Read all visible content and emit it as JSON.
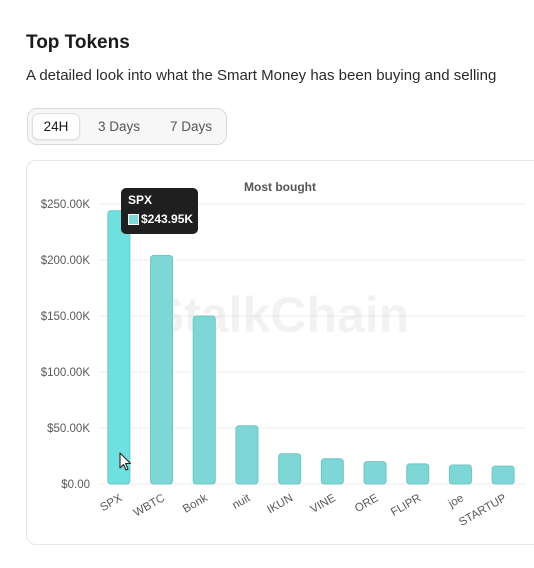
{
  "header": {
    "title": "Top Tokens",
    "subtitle": "A detailed look into what the Smart Money has been buying and selling"
  },
  "tabs": [
    {
      "label": "24H",
      "active": true
    },
    {
      "label": "3 Days",
      "active": false
    },
    {
      "label": "7 Days",
      "active": false
    }
  ],
  "watermark": "StalkChain",
  "tooltip": {
    "name": "SPX",
    "value": "$243.95K"
  },
  "colors": {
    "bar": "#7fd6d6",
    "bar_active": "#6fe0e0",
    "bar_stroke": "#6cc6c6"
  },
  "chart_data": {
    "type": "bar",
    "title": "Most bought",
    "categories": [
      "SPX",
      "WBTC",
      "Bonk",
      "nuit",
      "IKUN",
      "VINE",
      "ORE",
      "FLIPR",
      "joe",
      "STARTUP"
    ],
    "values": [
      243950,
      204000,
      150000,
      52000,
      27000,
      22500,
      20000,
      18000,
      17000,
      16000
    ],
    "ylim": [
      0,
      250000
    ],
    "yticks": [
      {
        "value": 0,
        "label": "$0.00"
      },
      {
        "value": 50000,
        "label": "$50.00K"
      },
      {
        "value": 100000,
        "label": "$100.00K"
      },
      {
        "value": 150000,
        "label": "$150.00K"
      },
      {
        "value": 200000,
        "label": "$200.00K"
      },
      {
        "value": 250000,
        "label": "$250.00K"
      }
    ],
    "grid": true,
    "highlighted": "SPX"
  }
}
